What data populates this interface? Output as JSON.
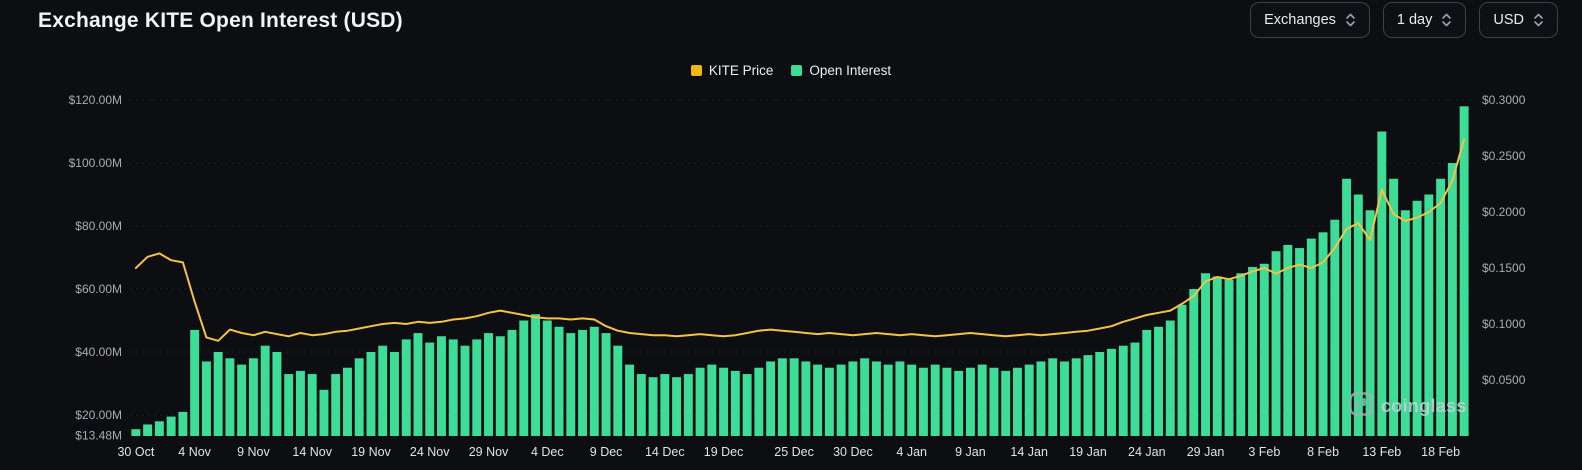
{
  "header": {
    "title": "Exchange KITE Open Interest (USD)"
  },
  "controls": {
    "exchanges_label": "Exchanges",
    "interval_label": "1 day",
    "currency_label": "USD"
  },
  "legend": {
    "items": [
      {
        "label": "KITE Price",
        "color": "#f0b90b"
      },
      {
        "label": "Open Interest",
        "color": "#3ddc97"
      }
    ]
  },
  "watermark": {
    "label": "coinglass"
  },
  "chart_data": {
    "type": "bar",
    "title": "Exchange KITE Open Interest (USD)",
    "legend_position": "top-center",
    "grid": true,
    "x": [
      "30 Oct",
      "31 Oct",
      "1 Nov",
      "2 Nov",
      "3 Nov",
      "4 Nov",
      "5 Nov",
      "6 Nov",
      "7 Nov",
      "8 Nov",
      "9 Nov",
      "10 Nov",
      "11 Nov",
      "12 Nov",
      "13 Nov",
      "14 Nov",
      "15 Nov",
      "16 Nov",
      "17 Nov",
      "18 Nov",
      "19 Nov",
      "20 Nov",
      "21 Nov",
      "22 Nov",
      "23 Nov",
      "24 Nov",
      "25 Nov",
      "26 Nov",
      "27 Nov",
      "28 Nov",
      "29 Nov",
      "30 Nov",
      "1 Dec",
      "2 Dec",
      "3 Dec",
      "4 Dec",
      "5 Dec",
      "6 Dec",
      "7 Dec",
      "8 Dec",
      "9 Dec",
      "10 Dec",
      "11 Dec",
      "12 Dec",
      "13 Dec",
      "14 Dec",
      "15 Dec",
      "16 Dec",
      "17 Dec",
      "18 Dec",
      "19 Dec",
      "20 Dec",
      "21 Dec",
      "22 Dec",
      "23 Dec",
      "24 Dec",
      "25 Dec",
      "26 Dec",
      "27 Dec",
      "28 Dec",
      "29 Dec",
      "30 Dec",
      "31 Dec",
      "1 Jan",
      "2 Jan",
      "3 Jan",
      "4 Jan",
      "5 Jan",
      "6 Jan",
      "7 Jan",
      "8 Jan",
      "9 Jan",
      "10 Jan",
      "11 Jan",
      "12 Jan",
      "13 Jan",
      "14 Jan",
      "15 Jan",
      "16 Jan",
      "17 Jan",
      "18 Jan",
      "19 Jan",
      "20 Jan",
      "21 Jan",
      "22 Jan",
      "23 Jan",
      "24 Jan",
      "25 Jan",
      "26 Jan",
      "27 Jan",
      "28 Jan",
      "29 Jan",
      "30 Jan",
      "31 Jan",
      "1 Feb",
      "2 Feb",
      "3 Feb",
      "4 Feb",
      "5 Feb",
      "6 Feb",
      "7 Feb",
      "8 Feb",
      "9 Feb",
      "10 Feb",
      "11 Feb",
      "12 Feb",
      "13 Feb",
      "14 Feb",
      "15 Feb",
      "16 Feb",
      "17 Feb",
      "18 Feb",
      "19 Feb",
      "20 Feb"
    ],
    "x_tick_labels": [
      "30 Oct",
      "4 Nov",
      "9 Nov",
      "14 Nov",
      "19 Nov",
      "24 Nov",
      "29 Nov",
      "4 Dec",
      "9 Dec",
      "14 Dec",
      "19 Dec",
      "25 Dec",
      "30 Dec",
      "4 Jan",
      "9 Jan",
      "14 Jan",
      "19 Jan",
      "24 Jan",
      "29 Jan",
      "3 Feb",
      "8 Feb",
      "13 Feb",
      "18 Feb"
    ],
    "series": [
      {
        "name": "Open Interest",
        "kind": "bar",
        "axis": "left",
        "unit": "USD millions",
        "color": "#3ddc97",
        "values": [
          15.5,
          17,
          18,
          19.5,
          21,
          47,
          37,
          40,
          38,
          36,
          38,
          42,
          40,
          33,
          34,
          33,
          28,
          33,
          35,
          38,
          40,
          42,
          40,
          44,
          46,
          43,
          45,
          44,
          42,
          44,
          46,
          45,
          47,
          50,
          52,
          50,
          48,
          46,
          47,
          48,
          46,
          42,
          36,
          33,
          32,
          33,
          32,
          33,
          35,
          36,
          35,
          34,
          33,
          35,
          37,
          38,
          38,
          37,
          36,
          35,
          36,
          37,
          38,
          37,
          36,
          37,
          36,
          35,
          36,
          35,
          34,
          35,
          36,
          35,
          34,
          35,
          36,
          37,
          38,
          37,
          38,
          39,
          40,
          41,
          42,
          43,
          47,
          48,
          50,
          55,
          60,
          65,
          64,
          63,
          65,
          67,
          68,
          72,
          74,
          73,
          76,
          78,
          82,
          95,
          90,
          85,
          110,
          95,
          85,
          88,
          90,
          95,
          100,
          118
        ]
      },
      {
        "name": "KITE Price",
        "kind": "line",
        "axis": "right",
        "unit": "USD",
        "color": "#f6c244",
        "values": [
          0.15,
          0.16,
          0.163,
          0.157,
          0.155,
          0.12,
          0.088,
          0.085,
          0.095,
          0.092,
          0.09,
          0.093,
          0.091,
          0.089,
          0.092,
          0.09,
          0.091,
          0.093,
          0.094,
          0.096,
          0.098,
          0.1,
          0.101,
          0.1,
          0.102,
          0.101,
          0.102,
          0.104,
          0.105,
          0.107,
          0.11,
          0.112,
          0.11,
          0.108,
          0.106,
          0.105,
          0.105,
          0.104,
          0.105,
          0.104,
          0.098,
          0.094,
          0.092,
          0.091,
          0.09,
          0.09,
          0.089,
          0.09,
          0.091,
          0.09,
          0.089,
          0.09,
          0.092,
          0.094,
          0.095,
          0.094,
          0.093,
          0.092,
          0.091,
          0.092,
          0.091,
          0.09,
          0.091,
          0.092,
          0.091,
          0.09,
          0.091,
          0.09,
          0.089,
          0.09,
          0.091,
          0.092,
          0.091,
          0.09,
          0.089,
          0.09,
          0.091,
          0.09,
          0.091,
          0.092,
          0.093,
          0.094,
          0.096,
          0.098,
          0.102,
          0.105,
          0.108,
          0.11,
          0.112,
          0.118,
          0.125,
          0.138,
          0.142,
          0.14,
          0.143,
          0.147,
          0.15,
          0.145,
          0.15,
          0.153,
          0.15,
          0.155,
          0.168,
          0.185,
          0.19,
          0.175,
          0.22,
          0.198,
          0.192,
          0.195,
          0.2,
          0.208,
          0.228,
          0.265
        ]
      }
    ],
    "left_axis": {
      "tick_values": [
        120,
        100,
        80,
        60,
        40,
        20,
        13.48
      ],
      "tick_labels": [
        "$120.00M",
        "$100.00M",
        "$80.00M",
        "$60.00M",
        "$40.00M",
        "$20.00M",
        "$13.48M"
      ],
      "min": 13.48,
      "max": 120
    },
    "right_axis": {
      "tick_values": [
        0.3,
        0.25,
        0.2,
        0.15,
        0.1,
        0.05
      ],
      "tick_labels": [
        "$0.3000",
        "$0.2500",
        "$0.2000",
        "$0.1500",
        "$0.1000",
        "$0.0500"
      ],
      "min": 0.05,
      "max": 0.3
    }
  }
}
